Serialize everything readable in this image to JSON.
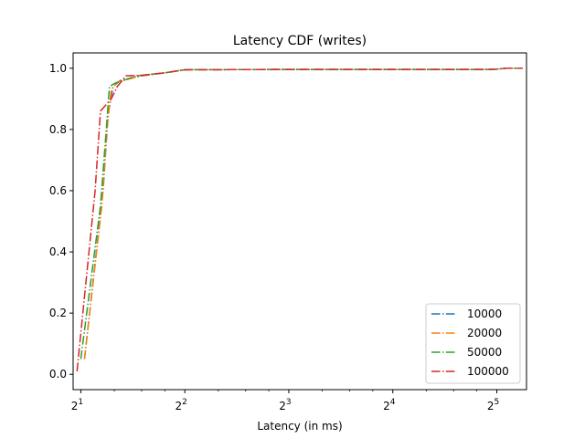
{
  "chart_data": {
    "type": "line",
    "title": "Latency CDF (writes)",
    "xlabel": "Latency (in ms)",
    "ylabel": "",
    "xscale": "log2",
    "xlim": [
      1.9,
      39
    ],
    "ylim": [
      -0.05,
      1.05
    ],
    "x_ticks": [
      {
        "value": 2,
        "base": "2",
        "exp": "1"
      },
      {
        "value": 4,
        "base": "2",
        "exp": "2"
      },
      {
        "value": 8,
        "base": "2",
        "exp": "3"
      },
      {
        "value": 16,
        "base": "2",
        "exp": "4"
      },
      {
        "value": 32,
        "base": "2",
        "exp": "5"
      }
    ],
    "y_ticks": [
      {
        "value": 0.0,
        "label": "0.0"
      },
      {
        "value": 0.2,
        "label": "0.2"
      },
      {
        "value": 0.4,
        "label": "0.4"
      },
      {
        "value": 0.6,
        "label": "0.6"
      },
      {
        "value": 0.8,
        "label": "0.8"
      },
      {
        "value": 1.0,
        "label": "1.0"
      }
    ],
    "grid": false,
    "legend_position": "lower-right",
    "series": [
      {
        "name": "10000",
        "color": "#1f77b4",
        "points": [
          [
            2.05,
            0.05
          ],
          [
            2.32,
            0.6
          ],
          [
            2.4,
            0.85
          ],
          [
            2.48,
            0.94
          ],
          [
            2.6,
            0.96
          ],
          [
            3.0,
            0.975
          ],
          [
            3.5,
            0.985
          ],
          [
            4.0,
            0.995
          ],
          [
            8.0,
            0.996
          ],
          [
            30.0,
            0.996
          ],
          [
            32.0,
            0.997
          ],
          [
            34.0,
            1.0
          ],
          [
            38.0,
            1.0
          ]
        ]
      },
      {
        "name": "20000",
        "color": "#ff7f0e",
        "points": [
          [
            2.05,
            0.05
          ],
          [
            2.3,
            0.55
          ],
          [
            2.38,
            0.8
          ],
          [
            2.45,
            0.93
          ],
          [
            2.55,
            0.955
          ],
          [
            3.0,
            0.975
          ],
          [
            3.5,
            0.985
          ],
          [
            4.0,
            0.995
          ],
          [
            8.0,
            0.996
          ],
          [
            30.0,
            0.996
          ],
          [
            32.0,
            0.997
          ],
          [
            34.0,
            1.0
          ],
          [
            38.0,
            1.0
          ]
        ]
      },
      {
        "name": "50000",
        "color": "#2ca02c",
        "points": [
          [
            2.0,
            0.05
          ],
          [
            2.28,
            0.55
          ],
          [
            2.37,
            0.8
          ],
          [
            2.42,
            0.94
          ],
          [
            2.5,
            0.95
          ],
          [
            2.9,
            0.975
          ],
          [
            3.5,
            0.985
          ],
          [
            4.0,
            0.995
          ],
          [
            8.0,
            0.996
          ],
          [
            30.0,
            0.996
          ],
          [
            32.0,
            0.997
          ],
          [
            34.0,
            1.0
          ],
          [
            38.0,
            1.0
          ]
        ]
      },
      {
        "name": "100000",
        "color": "#d62728",
        "points": [
          [
            1.95,
            0.01
          ],
          [
            2.2,
            0.6
          ],
          [
            2.28,
            0.86
          ],
          [
            2.45,
            0.9
          ],
          [
            2.55,
            0.94
          ],
          [
            2.7,
            0.975
          ],
          [
            3.0,
            0.977
          ],
          [
            3.5,
            0.985
          ],
          [
            4.0,
            0.995
          ],
          [
            8.0,
            0.996
          ],
          [
            30.0,
            0.996
          ],
          [
            32.0,
            0.997
          ],
          [
            34.0,
            1.0
          ],
          [
            38.0,
            1.0
          ]
        ]
      }
    ]
  }
}
